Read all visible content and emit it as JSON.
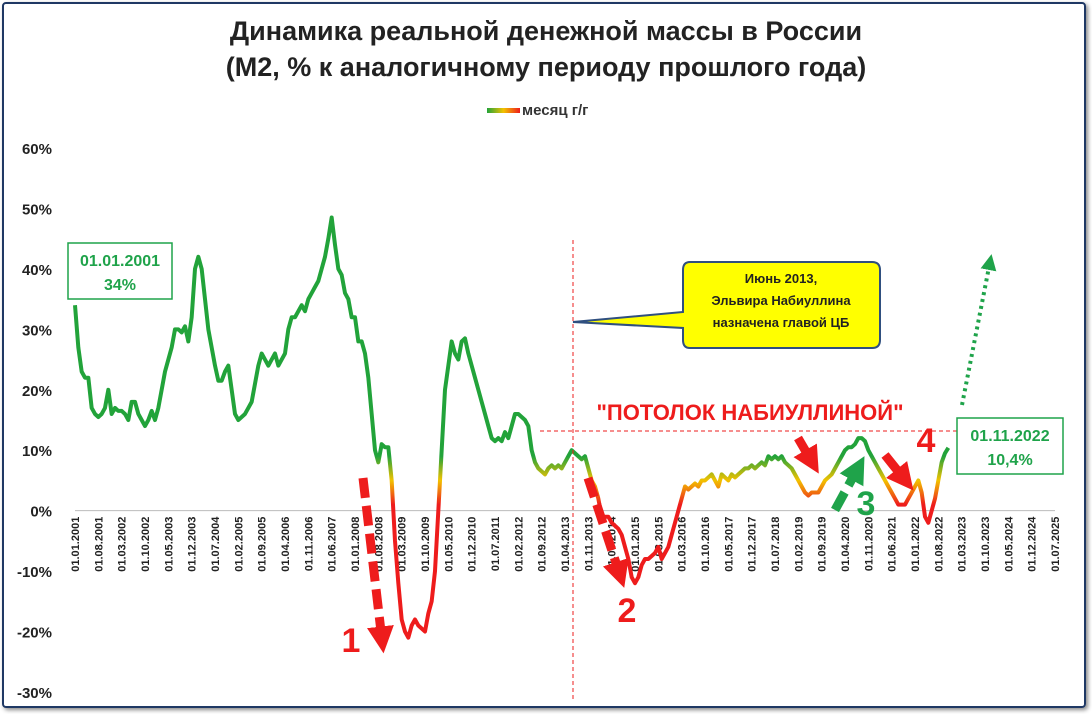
{
  "chart_data": {
    "type": "line",
    "title": "Динамика реальной денежной массы в России",
    "subtitle": "(М2, % к аналогичному периоду прошлого года)",
    "categories": [
      "01.01.2001",
      null,
      null,
      null,
      null,
      null,
      null,
      "01.08.2001",
      null,
      null,
      null,
      null,
      null,
      null,
      "01.03.2002",
      null,
      null,
      null,
      null,
      null,
      null,
      "01.10.2002",
      null,
      null,
      null,
      null,
      null,
      null,
      "01.05.2003",
      null,
      null,
      null,
      null,
      null,
      null,
      "01.12.2003",
      null,
      null,
      null,
      null,
      null,
      null,
      "01.07.2004",
      null,
      null,
      null,
      null,
      null,
      null,
      "01.02.2005",
      null,
      null,
      null,
      null,
      null,
      null,
      "01.09.2005",
      null,
      null,
      null,
      null,
      null,
      null,
      "01.04.2006",
      null,
      null,
      null,
      null,
      null,
      null,
      "01.11.2006",
      null,
      null,
      null,
      null,
      null,
      null,
      "01.06.2007",
      null,
      null,
      null,
      null,
      null,
      null,
      "01.01.2008",
      null,
      null,
      null,
      null,
      null,
      null,
      "01.08.2008",
      null,
      null,
      null,
      null,
      null,
      null,
      "01.03.2009",
      null,
      null,
      null,
      null,
      null,
      null,
      "01.10.2009",
      null,
      null,
      null,
      null,
      null,
      null,
      "01.05.2010",
      null,
      null,
      null,
      null,
      null,
      null,
      "01.12.2010",
      null,
      null,
      null,
      null,
      null,
      null,
      "01.07.2011",
      null,
      null,
      null,
      null,
      null,
      null,
      "01.02.2012",
      null,
      null,
      null,
      null,
      null,
      null,
      "01.09.2012",
      null,
      null,
      null,
      null,
      null,
      null,
      "01.04.2013",
      null,
      null,
      null,
      null,
      null,
      null,
      "01.11.2013",
      null,
      null,
      null,
      null,
      null,
      null,
      "01.06.2014",
      null,
      null,
      null,
      null,
      null,
      null,
      "01.01.2015",
      null,
      null,
      null,
      null,
      null,
      null,
      "01.08.2015",
      null,
      null,
      null,
      null,
      null,
      null,
      "01.03.2016",
      null,
      null,
      null,
      null,
      null,
      null,
      "01.10.2016",
      null,
      null,
      null,
      null,
      null,
      null,
      "01.05.2017",
      null,
      null,
      null,
      null,
      null,
      null,
      "01.12.2017",
      null,
      null,
      null,
      null,
      null,
      null,
      "01.07.2018",
      null,
      null,
      null,
      null,
      null,
      null,
      "01.02.2019",
      null,
      null,
      null,
      null,
      null,
      null,
      "01.09.2019",
      null,
      null,
      null,
      null,
      null,
      null,
      "01.04.2020",
      null,
      null,
      null,
      null,
      null,
      null,
      "01.11.2020",
      null,
      null,
      null,
      null,
      null,
      null,
      "01.06.2021",
      null,
      null,
      null,
      null,
      null,
      null,
      "01.01.2022",
      null,
      null,
      null,
      null,
      null,
      null,
      "01.08.2022",
      null,
      null,
      null,
      null,
      null,
      null,
      "01.03.2023",
      null,
      null,
      null,
      null,
      null,
      null,
      "01.10.2023",
      null,
      null,
      null,
      null,
      null,
      null,
      "01.05.2024",
      null,
      null,
      null,
      null,
      null,
      null,
      "01.12.2024",
      null,
      null,
      null,
      null,
      null,
      null,
      "01.07.2025"
    ],
    "series": [
      {
        "name": "месяц г/г",
        "color_scale": [
          {
            "value": 9,
            "color": "#22a33a"
          },
          {
            "value": 5,
            "color": "#f2c200"
          },
          {
            "value": 1,
            "color": "#ee1c1c"
          }
        ],
        "values": [
          34,
          27,
          23,
          22,
          22,
          17,
          16,
          15.5,
          16,
          17,
          20,
          16,
          17,
          16.5,
          16.5,
          16,
          15,
          18,
          18,
          16,
          15,
          14,
          15,
          16.5,
          15,
          17,
          20,
          23,
          25,
          27,
          30,
          30,
          29.5,
          30.5,
          28,
          32,
          40,
          42,
          40,
          35,
          30,
          27,
          24,
          21.5,
          21.5,
          23,
          24,
          20,
          16,
          15,
          15.5,
          16,
          17,
          18,
          21,
          24,
          26,
          25,
          24,
          25,
          26,
          24,
          25,
          26,
          30,
          32,
          32,
          33,
          34,
          33,
          35,
          36,
          37,
          38,
          40,
          42,
          45,
          48.5,
          44,
          40,
          39,
          36,
          35,
          32,
          32,
          28,
          28,
          26,
          22,
          16,
          10,
          8,
          11,
          10.5,
          10.5,
          5,
          -5,
          -12,
          -18,
          -20,
          -21,
          -19,
          -18,
          -19,
          -19.5,
          -20,
          -17,
          -15,
          -10,
          0,
          10,
          20,
          24,
          28,
          26,
          25,
          28,
          28.5,
          26,
          24,
          22,
          20,
          18,
          16,
          14,
          12,
          11.5,
          12,
          11.5,
          13,
          12,
          14,
          16,
          16,
          15.5,
          15,
          14,
          10,
          8,
          7,
          6.5,
          6,
          7,
          7.5,
          7,
          7.5,
          7,
          8,
          9,
          10,
          9.5,
          9,
          8.5,
          9,
          7,
          5,
          4,
          2,
          -1,
          -1,
          -1,
          -2,
          -2.5,
          -3,
          -4,
          -6,
          -8,
          -11,
          -12,
          -11,
          -9,
          -8,
          -8,
          -7.5,
          -7,
          -6,
          -8,
          -7,
          -6,
          -4,
          -2,
          0,
          2,
          4,
          3.5,
          4,
          4.5,
          4,
          5,
          5,
          5.5,
          6,
          5,
          4,
          6,
          5.5,
          5,
          6,
          5.5,
          6,
          6.5,
          7,
          7,
          7.5,
          7,
          7.5,
          8,
          7.5,
          9,
          8.5,
          9,
          8.5,
          9,
          8,
          7.5,
          7,
          6,
          5,
          4,
          3,
          2.5,
          3,
          3,
          3,
          4,
          5,
          5.5,
          6,
          7,
          8,
          9,
          10,
          10.5,
          10.5,
          11,
          12,
          12,
          11.5,
          10,
          9,
          8,
          7,
          6,
          5,
          4,
          3,
          2,
          1,
          1,
          1,
          2,
          3,
          4,
          5,
          3,
          -1,
          -2,
          0,
          2,
          5,
          8,
          9.5,
          10.4,
          null,
          null,
          null,
          null,
          null,
          null,
          null,
          null,
          null,
          null,
          null,
          null,
          null,
          null,
          null,
          null,
          null,
          null,
          null,
          null,
          null,
          null,
          null,
          null,
          null,
          null,
          null,
          null,
          null,
          null,
          null,
          null
        ]
      }
    ],
    "ylim": [
      -30,
      60
    ],
    "yticks": [
      {
        "value": -30,
        "label": "-30%"
      },
      {
        "value": -20,
        "label": "-20%"
      },
      {
        "value": -10,
        "label": "-10%"
      },
      {
        "value": 0,
        "label": "0%"
      },
      {
        "value": 10,
        "label": "10%"
      },
      {
        "value": 20,
        "label": "20%"
      },
      {
        "value": 30,
        "label": "30%"
      },
      {
        "value": 40,
        "label": "40%"
      },
      {
        "value": 50,
        "label": "50%"
      },
      {
        "value": 60,
        "label": "60%"
      }
    ],
    "grid": false,
    "legend": "top",
    "annotations": {
      "start_date": "01.01.2001",
      "start_value": "34%",
      "end_date": "01.11.2022",
      "end_value": "10,4%",
      "callout": [
        "Июнь 2013,",
        "Эльвира  Набиуллина",
        "назначена главой ЦБ"
      ],
      "ceiling": "\"ПОТОЛОК НАБИУЛЛИНОЙ\"",
      "markers": [
        "1",
        "2",
        "3",
        "4"
      ]
    }
  }
}
